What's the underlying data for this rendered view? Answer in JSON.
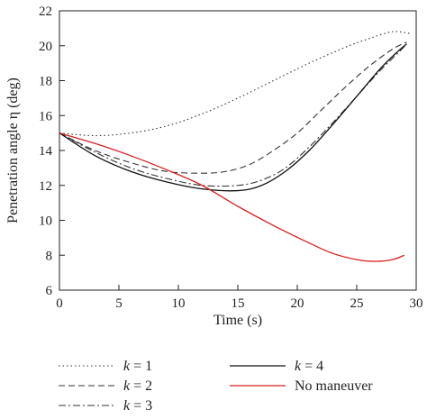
{
  "chart_data": {
    "type": "line",
    "xlabel": "Time (s)",
    "ylabel": "Penetration angle η (deg)",
    "xlim": [
      0,
      30
    ],
    "ylim": [
      6,
      22
    ],
    "xticks": [
      0,
      5,
      10,
      15,
      20,
      25,
      30
    ],
    "yticks": [
      6,
      8,
      10,
      12,
      14,
      16,
      18,
      20,
      22
    ],
    "grid": false,
    "legend_position": "bottom",
    "series": [
      {
        "name": "k = 1",
        "style": "dotted",
        "color": "#333333",
        "x": [
          0,
          3,
          6,
          9,
          12,
          15,
          18,
          21,
          24,
          26,
          28,
          29.5
        ],
        "y": [
          15.0,
          14.85,
          15.0,
          15.4,
          16.1,
          17.0,
          18.0,
          19.0,
          19.9,
          20.4,
          20.8,
          20.7
        ]
      },
      {
        "name": "k = 2",
        "style": "dashed",
        "color": "#333333",
        "x": [
          0,
          3,
          6,
          9,
          12,
          14,
          16,
          18,
          20,
          22,
          24,
          26,
          28,
          29.2
        ],
        "y": [
          15.0,
          14.0,
          13.3,
          12.8,
          12.7,
          12.8,
          13.2,
          14.0,
          15.0,
          16.3,
          17.6,
          18.8,
          19.8,
          20.2
        ]
      },
      {
        "name": "k = 3",
        "style": "dashdot",
        "color": "#333333",
        "x": [
          0,
          3,
          6,
          9,
          12,
          15,
          17,
          19,
          21,
          23,
          25,
          27,
          28.5,
          29.2
        ],
        "y": [
          15.0,
          13.9,
          13.0,
          12.4,
          12.0,
          12.0,
          12.3,
          13.0,
          14.2,
          15.6,
          17.1,
          18.6,
          19.6,
          20.1
        ]
      },
      {
        "name": "k = 4",
        "style": "solid",
        "color": "#111111",
        "x": [
          0,
          3,
          6,
          9,
          12,
          15,
          17,
          19,
          21,
          23,
          25,
          27,
          28.5,
          29.2
        ],
        "y": [
          15.0,
          13.7,
          12.8,
          12.2,
          11.8,
          11.7,
          12.0,
          12.8,
          14.0,
          15.5,
          17.1,
          18.7,
          19.7,
          20.1
        ]
      },
      {
        "name": "No maneuver",
        "style": "solid",
        "color": "#d62020",
        "x": [
          0,
          3,
          6,
          9,
          12,
          15,
          18,
          21,
          23,
          25,
          26.5,
          28,
          29
        ],
        "y": [
          15.0,
          14.4,
          13.7,
          12.9,
          12.0,
          10.8,
          9.7,
          8.7,
          8.1,
          7.75,
          7.65,
          7.75,
          8.0
        ]
      }
    ]
  }
}
